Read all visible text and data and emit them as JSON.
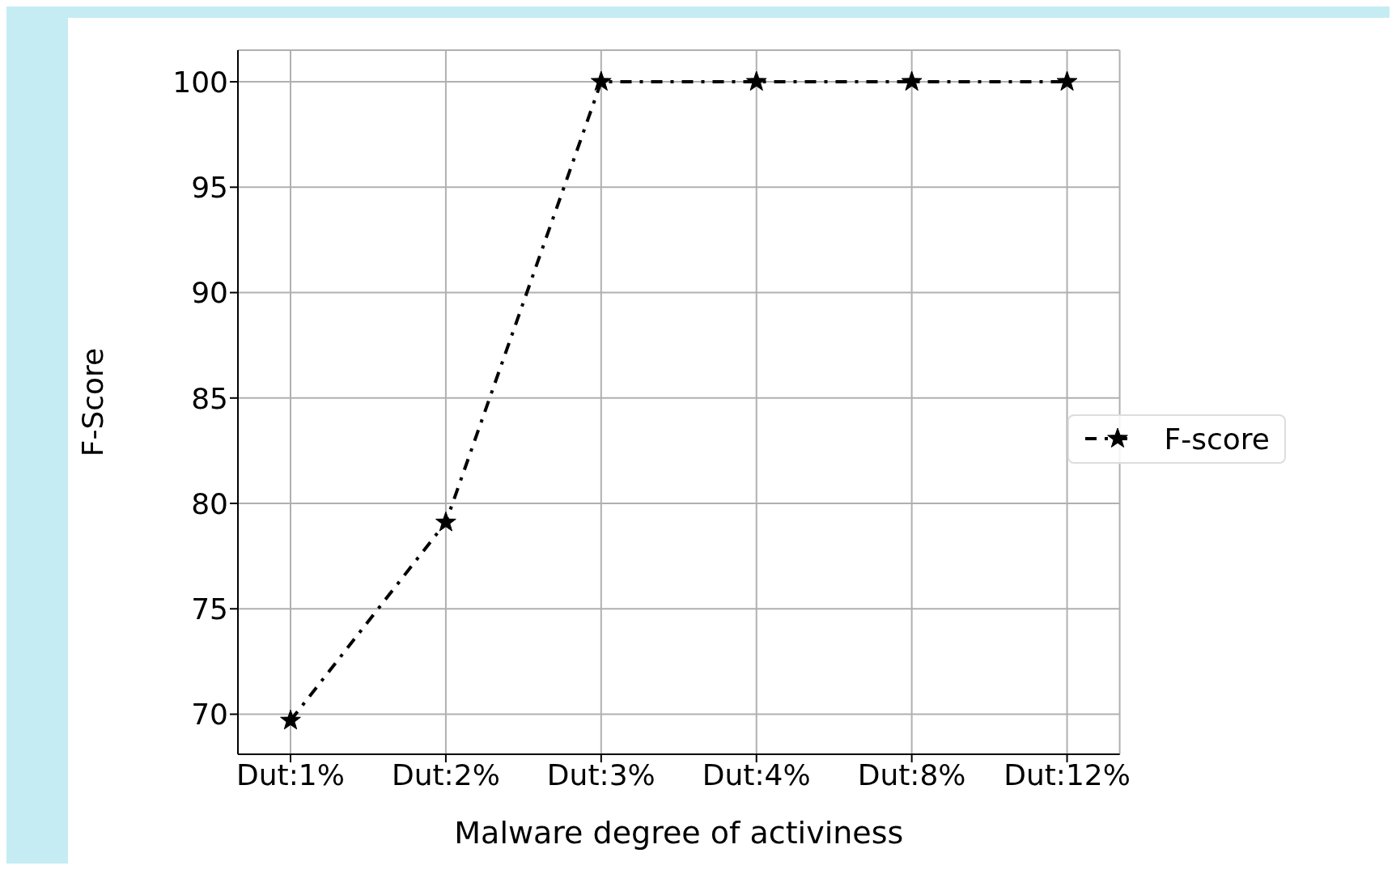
{
  "chart_data": {
    "type": "line",
    "xlabel": "Malware degree of activiness",
    "ylabel": "F-Score",
    "categories": [
      "Dut:1%",
      "Dut:2%",
      "Dut:3%",
      "Dut:4%",
      "Dut:8%",
      "Dut:12%"
    ],
    "series": [
      {
        "name": "F-score",
        "color": "#000000",
        "values": [
          69.7,
          79.1,
          100,
          100,
          100,
          100
        ]
      }
    ],
    "ylim": [
      68.1,
      101.5
    ],
    "yticks": [
      70,
      75,
      80,
      85,
      90,
      95,
      100
    ],
    "grid": true,
    "legend": "right",
    "marker": "star",
    "line_style": "dashed"
  }
}
